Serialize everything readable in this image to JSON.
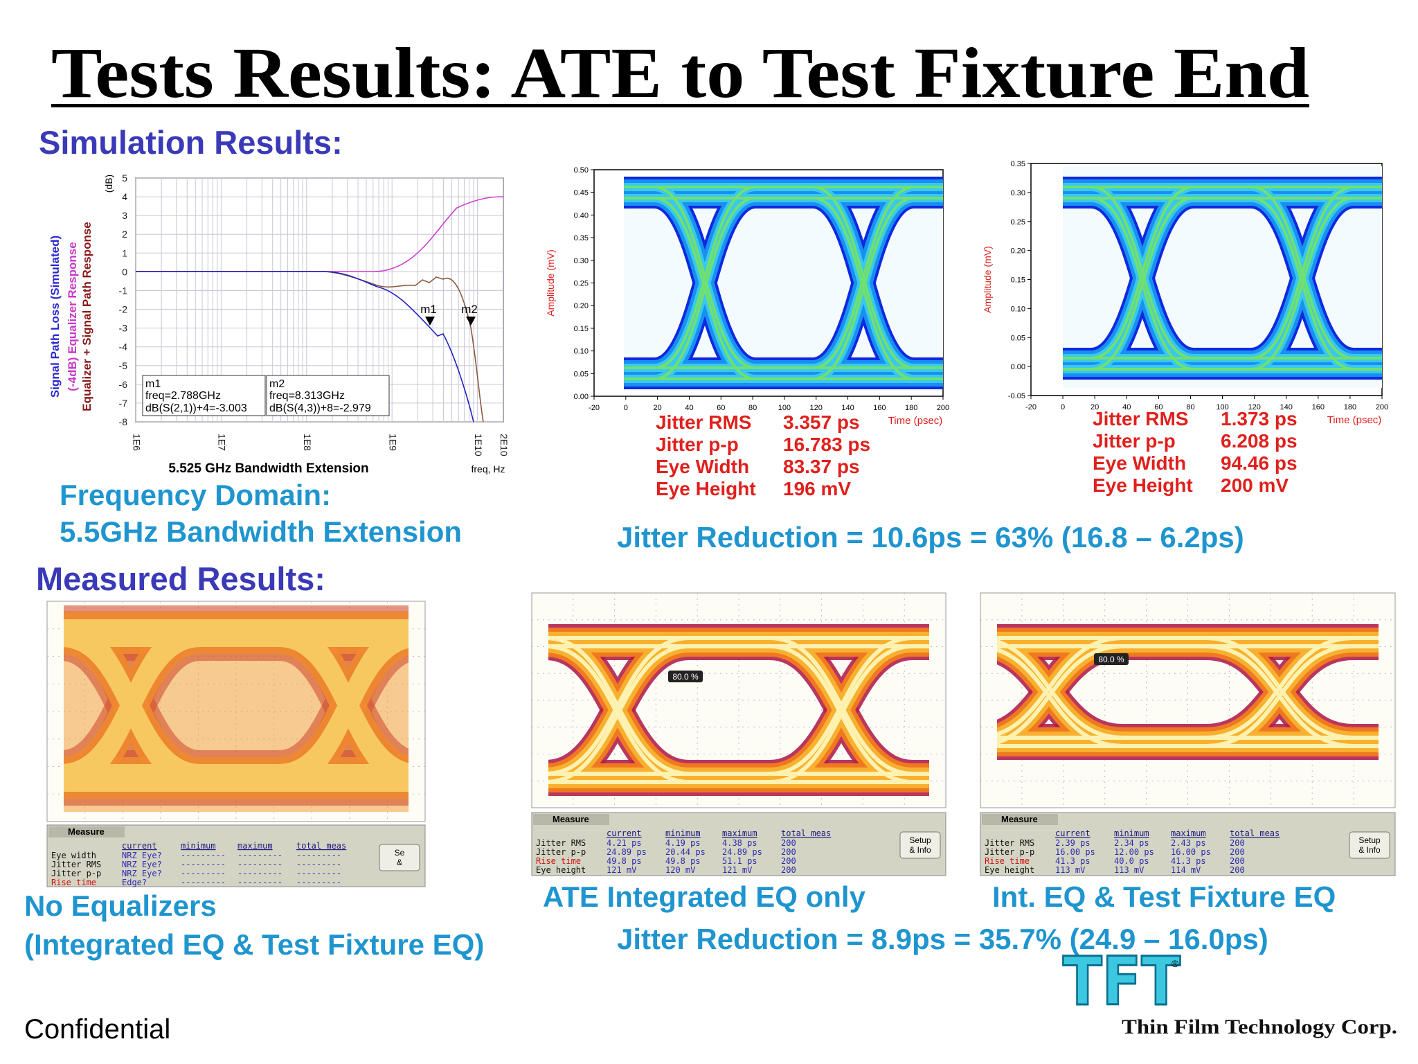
{
  "title": "Tests Results: ATE to Test Fixture End",
  "simulation": {
    "heading": "Simulation Results:",
    "frequency_plot": {
      "y_unit": "(dB)",
      "y_labels": [
        "Signal Path Loss (Simulated)",
        "(-4dB) Equalizer Response",
        "Equalizer + Signal Path Response"
      ],
      "yticks": [
        "5",
        "4",
        "3",
        "2",
        "1",
        "0",
        "-1",
        "-2",
        "-3",
        "-4",
        "-5",
        "-6",
        "-7",
        "-8"
      ],
      "xticks": [
        "1E6",
        "1E7",
        "1E8",
        "1E9",
        "1E10",
        "2E10"
      ],
      "x_label": "freq, Hz",
      "caption": "5.525 GHz Bandwidth Extension",
      "markers": [
        {
          "label": "m1",
          "lines": [
            "freq=2.788GHz",
            "dB(S(2,1))+4=-3.003"
          ]
        },
        {
          "label": "m2",
          "lines": [
            "freq=8.313GHz",
            "dB(S(4,3))+8=-2.979"
          ]
        }
      ]
    },
    "eye_plots": [
      {
        "y_label": "Amplitude (mV)",
        "yticks": [
          "0.50",
          "0.45",
          "0.40",
          "0.35",
          "0.30",
          "0.25",
          "0.20",
          "0.15",
          "0.10",
          "0.05",
          "0.00"
        ],
        "xticks": [
          "-20",
          "0",
          "20",
          "40",
          "60",
          "80",
          "100",
          "120",
          "140",
          "160",
          "180",
          "200"
        ],
        "x_label": "Time (psec)",
        "stats": [
          [
            "Jitter RMS",
            "3.357 ps"
          ],
          [
            "Jitter  p-p",
            "16.783 ps"
          ],
          [
            "Eye Width",
            "83.37 ps"
          ],
          [
            "Eye Height",
            "196 mV"
          ]
        ]
      },
      {
        "y_label": "Amplitude (mV)",
        "yticks": [
          "0.35",
          "0.30",
          "0.25",
          "0.20",
          "0.15",
          "0.10",
          "0.05",
          "0.00",
          "-0.05"
        ],
        "xticks": [
          "-20",
          "0",
          "20",
          "40",
          "60",
          "80",
          "100",
          "120",
          "140",
          "160",
          "180",
          "200"
        ],
        "x_label": "Time (psec)",
        "stats": [
          [
            "Jitter RMS",
            "1.373 ps"
          ],
          [
            "Jitter  p-p",
            "6.208 ps"
          ],
          [
            "Eye Width",
            "94.46 ps"
          ],
          [
            "Eye Height",
            "200 mV"
          ]
        ]
      }
    ],
    "caption": [
      "Frequency Domain:",
      "5.5GHz Bandwidth Extension"
    ],
    "jitter_reduction": "Jitter Reduction = 10.6ps = 63% (16.8 – 6.2ps)"
  },
  "measured": {
    "heading": "Measured Results:",
    "panels": [
      {
        "caption": [
          "No Equalizers",
          "(Integrated EQ & Test Fixture EQ)"
        ],
        "measure": {
          "title": "Measure",
          "columns": [
            "current",
            "minimum",
            "maximum",
            "total meas"
          ],
          "rows": [
            [
              "Eye width",
              "NRZ Eye?",
              "---------",
              "---------",
              "---------"
            ],
            [
              "Jitter RMS",
              "NRZ Eye?",
              "---------",
              "---------",
              "---------"
            ],
            [
              "Jitter p-p",
              "NRZ Eye?",
              "---------",
              "---------",
              "---------"
            ],
            [
              "Rise time",
              "Edge?",
              "---------",
              "---------",
              "---------"
            ]
          ]
        },
        "button": [
          "Se",
          "&"
        ]
      },
      {
        "caption": [
          "ATE Integrated EQ only"
        ],
        "marker": "80.0 %",
        "measure": {
          "title": "Measure",
          "columns": [
            "current",
            "minimum",
            "maximum",
            "total meas"
          ],
          "rows": [
            [
              "Jitter RMS",
              "4.21 ps",
              "4.19 ps",
              "4.38 ps",
              "200"
            ],
            [
              "Jitter p-p",
              "24.89 ps",
              "20.44 ps",
              "24.89 ps",
              "200"
            ],
            [
              "Rise time",
              "49.8 ps",
              "49.8 ps",
              "51.1 ps",
              "200"
            ],
            [
              "Eye height",
              "121 mV",
              "120 mV",
              "121 mV",
              "200"
            ]
          ]
        },
        "button": [
          "Setup",
          "& Info"
        ]
      },
      {
        "caption": [
          "Int. EQ & Test Fixture EQ"
        ],
        "marker": "80.0 %",
        "measure": {
          "title": "Measure",
          "columns": [
            "current",
            "minimum",
            "maximum",
            "total meas"
          ],
          "rows": [
            [
              "Jitter RMS",
              "2.39 ps",
              "2.34 ps",
              "2.43 ps",
              "200"
            ],
            [
              "Jitter p-p",
              "16.00 ps",
              "12.00 ps",
              "16.00 ps",
              "200"
            ],
            [
              "Rise time",
              "41.3 ps",
              "40.0 ps",
              "41.3 ps",
              "200"
            ],
            [
              "Eye height",
              "113 mV",
              "113 mV",
              "114 mV",
              "200"
            ]
          ]
        },
        "button": [
          "Setup",
          "& Info"
        ]
      }
    ],
    "jitter_reduction": "Jitter Reduction = 8.9ps = 35.7% (24.9 – 16.0ps)"
  },
  "footer": "Confidential",
  "logo": {
    "mark": "TFT",
    "registered": "®",
    "name": "Thin Film Technology Corp."
  }
}
